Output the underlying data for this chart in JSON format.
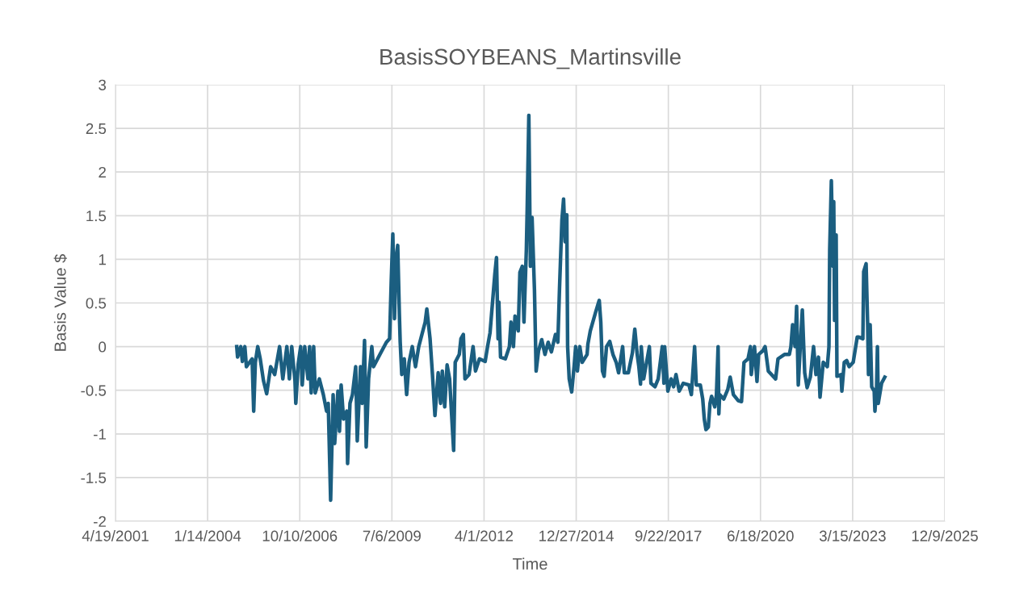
{
  "chart_data": {
    "type": "line",
    "title": "BasisSOYBEANS_Martinsville",
    "xlabel": "Time",
    "ylabel": "Basis Value $",
    "x": [
      "2004-11-25",
      "2004-12-04",
      "2005-01-08",
      "2005-01-25",
      "2005-02-21",
      "2005-03-10",
      "2005-05-11",
      "2005-05-28",
      "2005-06-15",
      "2005-07-11",
      "2005-08-07",
      "2005-09-11",
      "2005-10-16",
      "2005-11-28",
      "2006-01-11",
      "2006-03-05",
      "2006-04-09",
      "2006-05-23",
      "2006-06-19",
      "2006-07-15",
      "2006-08-19",
      "2006-08-28",
      "2006-09-23",
      "2006-10-20",
      "2006-11-06",
      "2006-12-03",
      "2007-01-07",
      "2007-01-25",
      "2007-02-11",
      "2007-03-10",
      "2007-03-27",
      "2007-05-10",
      "2007-06-23",
      "2007-07-28",
      "2007-08-15",
      "2007-09-10",
      "2007-10-07",
      "2007-10-24",
      "2007-11-28",
      "2007-12-15",
      "2008-01-02",
      "2008-01-28",
      "2008-03-03",
      "2008-03-12",
      "2008-04-07",
      "2008-05-04",
      "2008-06-08",
      "2008-06-25",
      "2008-07-30",
      "2008-08-17",
      "2008-09-12",
      "2008-09-30",
      "2008-10-26",
      "2008-11-30",
      "2008-12-18",
      "2009-02-26",
      "2009-05-07",
      "2009-06-11",
      "2009-06-29",
      "2009-07-16",
      "2009-08-03",
      "2009-08-21",
      "2009-09-07",
      "2009-09-25",
      "2009-10-04",
      "2009-10-21",
      "2009-11-17",
      "2009-12-13",
      "2010-01-08",
      "2010-02-12",
      "2010-03-19",
      "2010-04-23",
      "2010-07-02",
      "2010-07-20",
      "2010-08-24",
      "2010-09-19",
      "2010-10-16",
      "2010-11-20",
      "2010-12-16",
      "2011-01-04",
      "2011-01-30",
      "2011-02-25",
      "2011-03-24",
      "2011-05-07",
      "2011-05-24",
      "2011-07-07",
      "2011-07-25",
      "2011-08-20",
      "2011-09-07",
      "2011-10-21",
      "2011-12-04",
      "2011-12-30",
      "2012-02-11",
      "2012-04-13",
      "2012-05-09",
      "2012-06-05",
      "2012-07-27",
      "2012-08-14",
      "2012-08-31",
      "2012-09-09",
      "2012-09-27",
      "2012-11-18",
      "2013-01-01",
      "2013-01-18",
      "2013-02-14",
      "2013-03-03",
      "2013-04-07",
      "2013-04-25",
      "2013-05-21",
      "2013-06-08",
      "2013-07-04",
      "2013-07-13",
      "2013-07-31",
      "2013-08-17",
      "2013-09-04",
      "2013-09-30",
      "2013-10-18",
      "2013-11-13",
      "2013-12-18",
      "2014-01-22",
      "2014-02-26",
      "2014-04-02",
      "2014-05-16",
      "2014-06-11",
      "2014-06-29",
      "2014-07-25",
      "2014-08-12",
      "2014-08-29",
      "2014-09-16",
      "2014-09-25",
      "2014-10-12",
      "2014-11-08",
      "2014-12-04",
      "2014-12-21",
      "2015-01-09",
      "2015-02-04",
      "2015-03-02",
      "2015-04-24",
      "2015-05-03",
      "2015-05-29",
      "2015-07-30",
      "2015-09-03",
      "2015-09-20",
      "2015-10-08",
      "2015-10-26",
      "2015-11-21",
      "2015-12-26",
      "2016-01-30",
      "2016-03-05",
      "2016-03-31",
      "2016-05-14",
      "2016-06-01",
      "2016-07-15",
      "2016-08-28",
      "2016-09-23",
      "2016-10-19",
      "2016-11-06",
      "2016-11-24",
      "2016-12-02",
      "2016-12-28",
      "2017-02-28",
      "2017-03-17",
      "2017-04-30",
      "2017-06-04",
      "2017-07-18",
      "2017-08-05",
      "2017-08-13",
      "2017-09-17",
      "2017-10-23",
      "2017-11-18",
      "2017-12-14",
      "2018-01-18",
      "2018-03-03",
      "2018-05-04",
      "2018-05-30",
      "2018-07-04",
      "2018-07-22",
      "2018-09-04",
      "2018-09-30",
      "2018-10-17",
      "2018-11-04",
      "2018-11-30",
      "2018-12-18",
      "2019-01-04",
      "2019-02-08",
      "2019-02-26",
      "2019-03-16",
      "2019-03-24",
      "2019-04-02",
      "2019-05-16",
      "2019-06-29",
      "2019-07-25",
      "2019-08-29",
      "2019-10-21",
      "2019-11-25",
      "2019-12-22",
      "2020-02-04",
      "2020-03-01",
      "2020-03-10",
      "2020-04-14",
      "2020-05-11",
      "2020-05-28",
      "2020-07-11",
      "2020-08-07",
      "2020-09-11",
      "2020-11-29",
      "2020-12-25",
      "2021-03-05",
      "2021-04-27",
      "2021-05-14",
      "2021-06-01",
      "2021-06-28",
      "2021-07-15",
      "2021-08-02",
      "2021-08-28",
      "2021-09-15",
      "2021-10-11",
      "2021-11-06",
      "2021-12-11",
      "2022-01-15",
      "2022-02-10",
      "2022-03-09",
      "2022-03-26",
      "2022-04-30",
      "2022-06-13",
      "2022-07-01",
      "2022-07-09",
      "2022-07-27",
      "2022-08-14",
      "2022-08-22",
      "2022-08-31",
      "2022-09-17",
      "2022-09-26",
      "2022-11-09",
      "2022-11-18",
      "2022-12-14",
      "2023-01-10",
      "2023-02-05",
      "2023-03-21",
      "2023-05-04",
      "2023-05-21",
      "2023-07-04",
      "2023-07-13",
      "2023-08-08",
      "2023-08-25",
      "2023-09-03",
      "2023-09-21",
      "2023-10-08",
      "2023-11-04",
      "2023-11-12",
      "2023-11-30",
      "2023-12-09",
      "2023-12-18",
      "2024-01-23",
      "2024-02-27"
    ],
    "series": [
      {
        "color": "#1b5e80",
        "values": [
          0,
          -0.12,
          0,
          -0.17,
          0,
          -0.23,
          -0.14,
          -0.74,
          -0.18,
          0,
          -0.14,
          -0.39,
          -0.54,
          -0.23,
          -0.32,
          0,
          -0.37,
          0,
          -0.37,
          0,
          -0.39,
          -0.65,
          -0.2,
          0,
          -0.44,
          0,
          -0.37,
          0,
          -0.53,
          0,
          -0.53,
          -0.37,
          -0.55,
          -0.74,
          -0.65,
          -1.76,
          -0.55,
          -1.11,
          -0.51,
          -0.97,
          -0.44,
          -0.83,
          -0.74,
          -1.34,
          -0.65,
          -0.55,
          -0.23,
          -1.08,
          -0.23,
          -0.65,
          0.07,
          -1.15,
          -0.37,
          0,
          -0.23,
          -0.09,
          0.05,
          0.09,
          0.76,
          1.29,
          0.32,
          1.02,
          1.16,
          0.37,
          0.05,
          -0.32,
          -0.14,
          -0.55,
          -0.18,
          0,
          -0.23,
          0,
          0.28,
          0.43,
          0.09,
          -0.32,
          -0.79,
          -0.3,
          -0.65,
          -0.28,
          -0.69,
          -0.21,
          -0.37,
          -1.19,
          -0.18,
          -0.09,
          0.09,
          0.14,
          -0.37,
          -0.32,
          0,
          -0.28,
          -0.14,
          -0.17,
          0,
          0.16,
          0.83,
          1.02,
          0.09,
          0.51,
          -0.12,
          -0.14,
          0,
          0.28,
          0,
          0.35,
          0.18,
          0.85,
          0.92,
          0.28,
          1.11,
          1.57,
          2.65,
          0.92,
          1.48,
          0.65,
          -0.28,
          -0.05,
          0.08,
          -0.09,
          0.05,
          -0.06,
          0.14,
          0.05,
          0.67,
          1.45,
          1.69,
          1.2,
          1.51,
          0,
          -0.37,
          -0.52,
          -0.23,
          0,
          -0.28,
          0,
          -0.18,
          -0.09,
          0.03,
          0.18,
          0.41,
          0.53,
          0.28,
          -0.28,
          -0.34,
          0,
          0.06,
          -0.09,
          -0.18,
          -0.3,
          0,
          -0.3,
          -0.3,
          -0.07,
          0.2,
          -0.09,
          -0.23,
          -0.43,
          0,
          -0.37,
          0,
          -0.42,
          -0.46,
          -0.37,
          0,
          -0.42,
          0,
          -0.51,
          -0.37,
          -0.46,
          -0.32,
          -0.51,
          -0.42,
          -0.44,
          -0.55,
          0,
          -0.44,
          -0.44,
          -0.6,
          -0.83,
          -0.95,
          -0.92,
          -0.65,
          -0.57,
          -0.69,
          -0.55,
          0,
          -0.77,
          -0.55,
          -0.6,
          -0.49,
          -0.35,
          -0.55,
          -0.62,
          -0.63,
          -0.18,
          -0.14,
          0,
          -0.32,
          0,
          -0.4,
          -0.09,
          -0.05,
          0,
          -0.28,
          -0.37,
          -0.14,
          -0.09,
          -0.09,
          0,
          0.25,
          0,
          0.46,
          -0.44,
          0.09,
          0.42,
          -0.3,
          -0.47,
          -0.35,
          0,
          -0.32,
          -0.12,
          -0.58,
          -0.18,
          -0.23,
          0,
          1.11,
          1.9,
          0.92,
          1.66,
          0.3,
          1.28,
          -0.34,
          -0.32,
          -0.51,
          -0.18,
          -0.16,
          -0.23,
          -0.18,
          0.11,
          0.11,
          0.09,
          0.86,
          0.95,
          0.25,
          -0.32,
          0.25,
          -0.46,
          -0.51,
          -0.74,
          -0.46,
          0,
          -0.65,
          -0.42,
          -0.35
        ]
      }
    ],
    "xlim": [
      "2001-04-19",
      "2025-12-09"
    ],
    "xticks": [
      {
        "value": "2001-04-19",
        "label": "4/19/2001"
      },
      {
        "value": "2004-01-14",
        "label": "1/14/2004"
      },
      {
        "value": "2006-10-10",
        "label": "10/10/2006"
      },
      {
        "value": "2009-07-06",
        "label": "7/6/2009"
      },
      {
        "value": "2012-04-01",
        "label": "4/1/2012"
      },
      {
        "value": "2014-12-27",
        "label": "12/27/2014"
      },
      {
        "value": "2017-09-22",
        "label": "9/22/2017"
      },
      {
        "value": "2020-06-18",
        "label": "6/18/2020"
      },
      {
        "value": "2023-03-15",
        "label": "3/15/2023"
      },
      {
        "value": "2025-12-09",
        "label": "12/9/2025"
      }
    ],
    "ylim": [
      -2,
      3
    ],
    "yticks": [
      -2,
      -1.5,
      -1,
      -0.5,
      0,
      0.5,
      1,
      1.5,
      2,
      2.5,
      3
    ],
    "grid": true,
    "marker": "none",
    "line_style": "solid"
  }
}
